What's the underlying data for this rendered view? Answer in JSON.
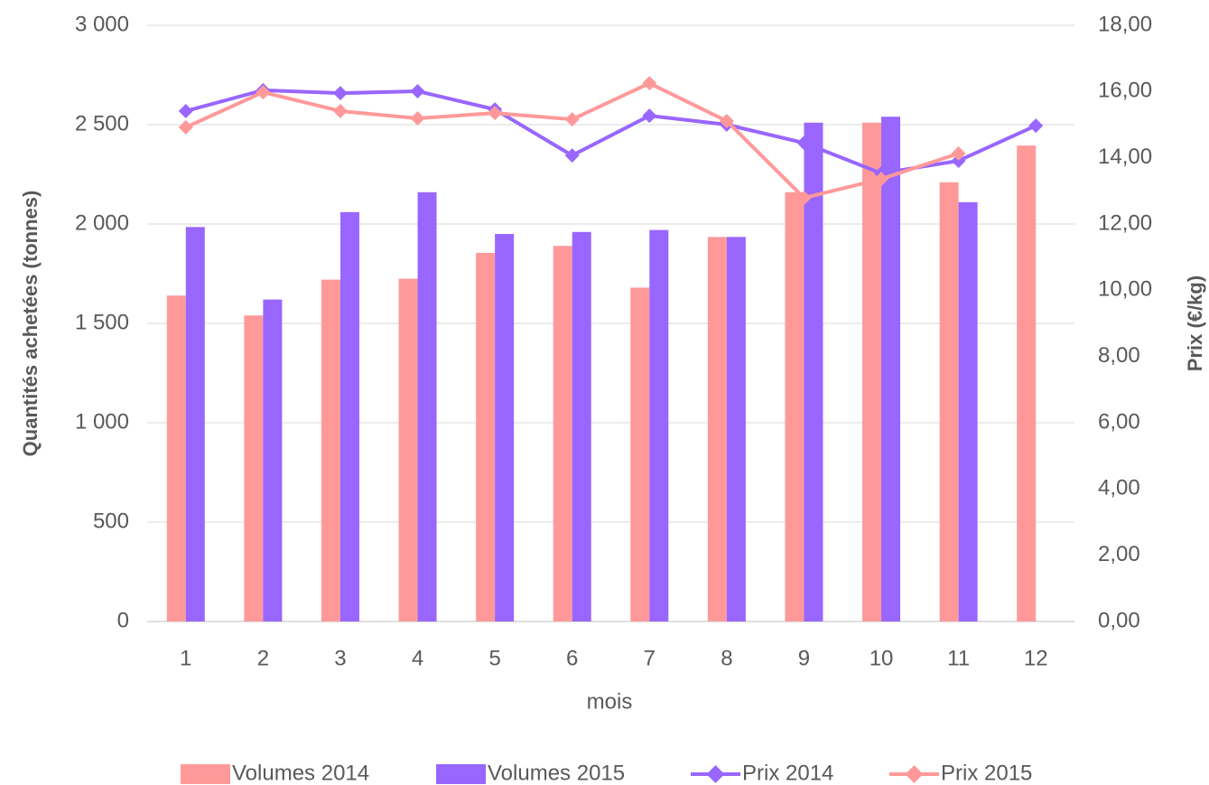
{
  "chart_data": {
    "type": "bar",
    "x_label": "mois",
    "y_label": "Quantités achetées (tonnes)",
    "y2_label": "Prix (€/kg)",
    "categories": [
      "1",
      "2",
      "3",
      "4",
      "5",
      "6",
      "7",
      "8",
      "9",
      "10",
      "11",
      "12"
    ],
    "series": [
      {
        "name": "Volumes 2014",
        "type": "bar",
        "color": "#ff9999",
        "values": [
          1640,
          1540,
          1720,
          1725,
          1855,
          1890,
          1680,
          1935,
          2160,
          2510,
          2210,
          2395
        ]
      },
      {
        "name": "Volumes 2015",
        "type": "bar",
        "color": "#9966ff",
        "values": [
          1985,
          1620,
          2060,
          2160,
          1950,
          1960,
          1970,
          1935,
          2510,
          2540,
          2110,
          null
        ]
      },
      {
        "name": "Prix 2014",
        "type": "line",
        "axis": "y2",
        "color": "#9966ff",
        "values": [
          15.41,
          16.04,
          15.95,
          16.01,
          15.46,
          14.07,
          15.27,
          15.0,
          14.45,
          13.53,
          13.91,
          14.97
        ]
      },
      {
        "name": "Prix 2015",
        "type": "line",
        "axis": "y2",
        "color": "#ff9999",
        "values": [
          14.92,
          15.98,
          15.41,
          15.19,
          15.35,
          15.16,
          16.25,
          15.11,
          12.79,
          13.36,
          14.13,
          null
        ]
      }
    ],
    "ylim": [
      0,
      3000
    ],
    "yticks": [
      0,
      500,
      {
        "value": 1000,
        "label": "1 000"
      },
      {
        "value": 1500,
        "label": "1 500"
      },
      {
        "value": 2000,
        "label": "2 000"
      },
      {
        "value": 2500,
        "label": "2 500"
      },
      {
        "value": 3000,
        "label": "3 000"
      }
    ],
    "y2lim": [
      0,
      18
    ],
    "y2ticks": [
      {
        "value": 0,
        "label": "0,00"
      },
      {
        "value": 2,
        "label": "2,00"
      },
      {
        "value": 4,
        "label": "4,00"
      },
      {
        "value": 6,
        "label": "6,00"
      },
      {
        "value": 8,
        "label": "8,00"
      },
      {
        "value": 10,
        "label": "10,00"
      },
      {
        "value": 12,
        "label": "12,00"
      },
      {
        "value": 14,
        "label": "14,00"
      },
      {
        "value": 16,
        "label": "16,00"
      },
      {
        "value": 18,
        "label": "18,00"
      }
    ],
    "grid": true,
    "legend": "bottom"
  }
}
